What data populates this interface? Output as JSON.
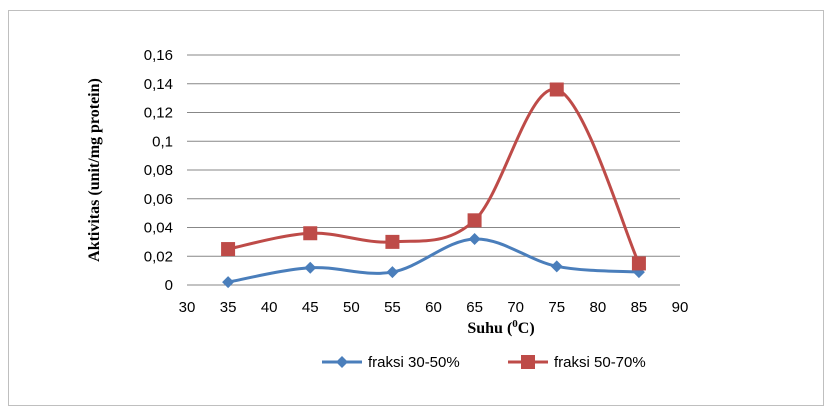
{
  "chart_data": {
    "type": "line",
    "xlabel": "Suhu (⁰C)",
    "ylabel": "Aktivitas  (unit/mg protein)",
    "x_ticks": [
      "30",
      "35",
      "40",
      "45",
      "50",
      "55",
      "60",
      "65",
      "70",
      "75",
      "80",
      "85",
      "90"
    ],
    "y_ticks": [
      "0",
      "0,02",
      "0,04",
      "0,06",
      "0,08",
      "0,1",
      "0,12",
      "0,14",
      "0,16"
    ],
    "xlim": [
      30,
      90
    ],
    "ylim": [
      0,
      0.16
    ],
    "grid": true,
    "legend_position": "bottom",
    "x": [
      35,
      45,
      55,
      65,
      75,
      85
    ],
    "series": [
      {
        "name": "fraksi 30-50%",
        "values": [
          0.002,
          0.012,
          0.009,
          0.032,
          0.013,
          0.009
        ],
        "color": "#4a7ebb",
        "marker": "diamond"
      },
      {
        "name": "fraksi 50-70%",
        "values": [
          0.025,
          0.036,
          0.03,
          0.045,
          0.136,
          0.015
        ],
        "color": "#be4b48",
        "marker": "square"
      }
    ]
  }
}
